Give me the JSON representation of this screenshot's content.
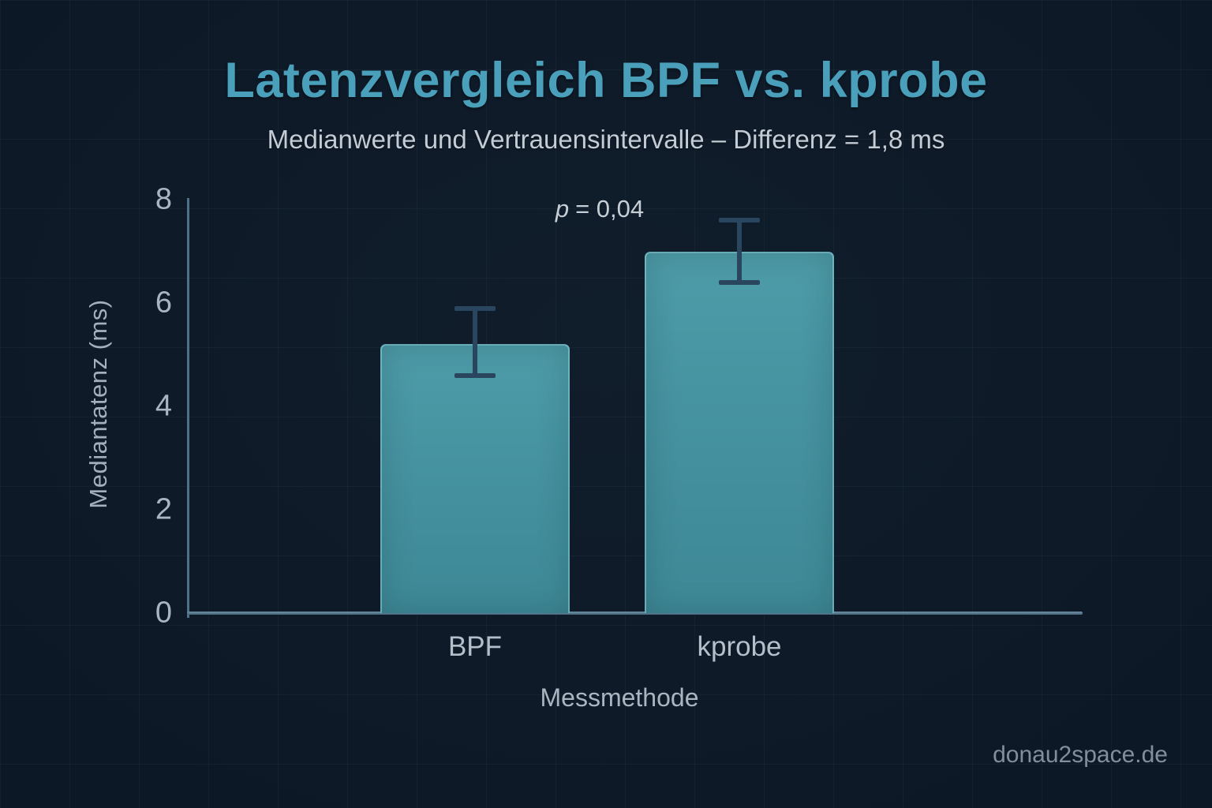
{
  "page": {
    "background_color": "#0d1826",
    "accent_color": "#4a9fba",
    "footer": "donau2space.de"
  },
  "chart_data": {
    "type": "bar",
    "title": "Latenzvergleich BPF vs. kprobe",
    "subtitle": "Medianwerte und Vertrauensintervalle – Differenz = 1,8 ms",
    "annotation": {
      "symbol": "p",
      "text": "= 0,04"
    },
    "categories": [
      "BPF",
      "kprobe"
    ],
    "values": [
      5.2,
      7.0
    ],
    "error_bars": {
      "lower": [
        4.6,
        6.4
      ],
      "upper": [
        5.9,
        7.6
      ]
    },
    "xlabel": "Messmethode",
    "ylabel": "Mediantatenz (ms)",
    "yticks": [
      0,
      2,
      4,
      6,
      8
    ],
    "ylim": [
      0,
      8
    ],
    "grid": "faint full-bleed square grid",
    "legend": "none",
    "colors": {
      "title": "#4a9fba",
      "bar_fill": "#4a96a3",
      "bar_edge": "#8ac8d2",
      "error_bar": "#2a465e",
      "axis_line": "#4e7089",
      "tick_text": "#a9b5bf",
      "subtitle_text": "#c3ccd4",
      "watermark_text": "#828f9b"
    }
  }
}
